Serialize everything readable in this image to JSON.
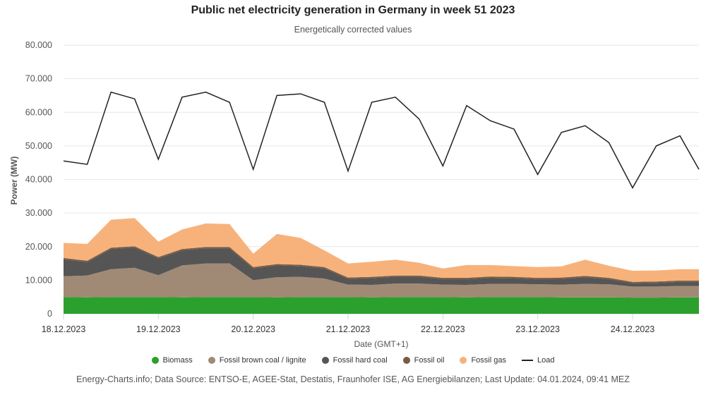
{
  "title": "Public net electricity generation in Germany in week 51 2023",
  "subtitle": "Energetically corrected values",
  "credits": "Energy-Charts.info; Data Source: ENTSO-E, AGEE-Stat, Destatis, Fraunhofer ISE, AG Energiebilanzen; Last Update: 04.01.2024, 09:41 MEZ",
  "chart_data": {
    "type": "area",
    "xlabel": "Date (GMT+1)",
    "ylabel": "Power (MW)",
    "ylim": [
      0,
      80000
    ],
    "yticks": [
      0,
      10000,
      20000,
      30000,
      40000,
      50000,
      60000,
      70000,
      80000
    ],
    "ytick_labels": [
      "0",
      "10.000",
      "20.000",
      "30.000",
      "40.000",
      "50.000",
      "60.000",
      "70.000",
      "80.000"
    ],
    "xlim": [
      0,
      6.7
    ],
    "xticks": [
      0,
      1,
      2,
      3,
      4,
      5,
      6
    ],
    "xtick_labels": [
      "18.12.2023",
      "19.12.2023",
      "20.12.2023",
      "21.12.2023",
      "22.12.2023",
      "23.12.2023",
      "24.12.2023"
    ],
    "x": [
      0,
      0.25,
      0.5,
      0.75,
      1,
      1.25,
      1.5,
      1.75,
      2,
      2.25,
      2.5,
      2.75,
      3,
      3.25,
      3.5,
      3.75,
      4,
      4.25,
      4.5,
      4.75,
      5,
      5.25,
      5.5,
      5.75,
      6,
      6.25,
      6.5,
      6.7
    ],
    "series": [
      {
        "name": "Biomass",
        "color": "#2ca02c",
        "values": [
          5000,
          4900,
          5000,
          5000,
          5000,
          4900,
          5000,
          5000,
          5000,
          4900,
          5000,
          5000,
          5000,
          4900,
          5000,
          5000,
          5000,
          4900,
          5000,
          5000,
          5000,
          4900,
          4900,
          4900,
          4800,
          4800,
          4900,
          4900
        ]
      },
      {
        "name": "Fossil brown coal / lignite",
        "color": "#a08a76",
        "values": [
          6200,
          6500,
          8300,
          8700,
          6500,
          9500,
          10000,
          10000,
          5000,
          6000,
          6000,
          5500,
          3700,
          3700,
          4000,
          4000,
          3700,
          3700,
          3900,
          3900,
          3800,
          3800,
          4000,
          3900,
          3300,
          3300,
          3400,
          3400
        ]
      },
      {
        "name": "Fossil hard coal",
        "color": "#555555",
        "values": [
          5000,
          4000,
          6000,
          6000,
          5000,
          4500,
          4500,
          4500,
          3500,
          3500,
          3200,
          3000,
          1700,
          2000,
          2000,
          2000,
          1600,
          1700,
          1800,
          1700,
          1500,
          1700,
          2000,
          1500,
          1000,
          1100,
          1200,
          1200
        ]
      },
      {
        "name": "Fossil oil",
        "color": "#7a5b43",
        "values": [
          400,
          400,
          400,
          400,
          400,
          400,
          400,
          400,
          400,
          400,
          400,
          400,
          400,
          400,
          400,
          400,
          400,
          400,
          400,
          400,
          400,
          400,
          400,
          400,
          400,
          400,
          400,
          400
        ]
      },
      {
        "name": "Fossil gas",
        "color": "#f7b27b",
        "values": [
          4500,
          5000,
          8300,
          8400,
          4600,
          5800,
          7000,
          6800,
          4000,
          9000,
          8000,
          5000,
          4200,
          4500,
          4700,
          3800,
          2800,
          3800,
          3400,
          3200,
          3200,
          3300,
          4800,
          3600,
          3300,
          3300,
          3400,
          3400
        ]
      },
      {
        "name": "Load",
        "color": "#222222",
        "values": [
          45500,
          44500,
          66000,
          64000,
          46000,
          64500,
          66000,
          63000,
          43000,
          65000,
          65500,
          63000,
          42500,
          63000,
          64500,
          58000,
          44000,
          62000,
          57500,
          55000,
          41500,
          54000,
          56000,
          51000,
          37500,
          50000,
          53000,
          43000
        ]
      }
    ],
    "legend_position": "bottom",
    "grid": true
  }
}
